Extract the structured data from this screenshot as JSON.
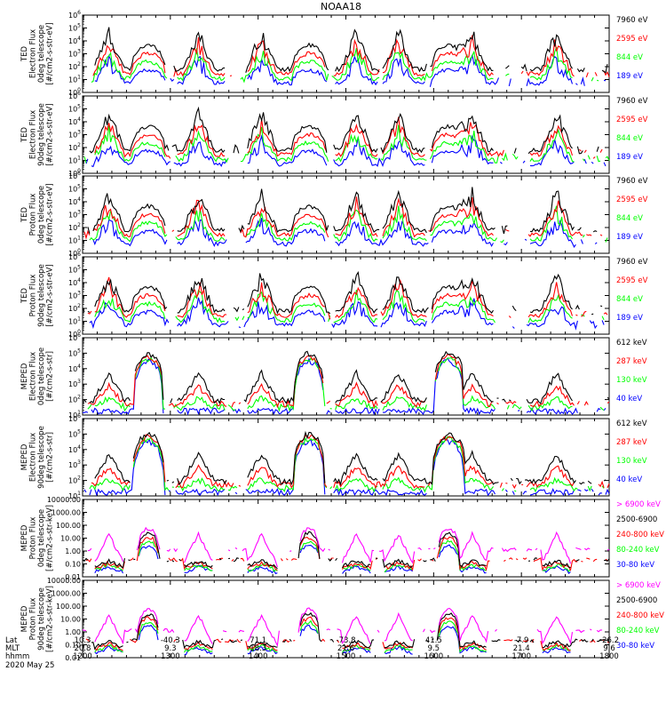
{
  "title": "NOAA18",
  "colors": {
    "blue": "#0000ff",
    "red": "#ff0000",
    "green": "#00ff00",
    "black": "#000000",
    "magenta": "#ff00ff"
  },
  "footer": {
    "row_labels": [
      "Lat",
      "MLT",
      "hhmm"
    ],
    "date": "2020 May 25",
    "lat": [
      "10.3",
      "-40.3",
      "71.1",
      "-73.8",
      "41.5",
      "-7.9",
      "-26.2"
    ],
    "mlt": [
      "20.8",
      "9.3",
      "18.3",
      "21.6",
      "9.5",
      "21.4",
      "9.6"
    ],
    "hhmm": [
      "1200",
      "1300",
      "1400",
      "1500",
      "1600",
      "1700",
      "1800"
    ]
  },
  "chart_data": [
    {
      "type": "line",
      "ylabel": [
        "TED",
        "Electron Flux",
        "0deg telescope",
        "[#/cm2-s-str-eV]"
      ],
      "yscale": "log",
      "ylim": [
        1,
        1000000
      ],
      "yticks": [
        {
          "label": "10",
          "sup": "0"
        },
        {
          "label": "10",
          "sup": "1"
        },
        {
          "label": "10",
          "sup": "2"
        },
        {
          "label": "10",
          "sup": "3"
        },
        {
          "label": "10",
          "sup": "4"
        },
        {
          "label": "10",
          "sup": "5"
        },
        {
          "label": "10",
          "sup": "6"
        }
      ],
      "series": [
        {
          "name": "7960 eV",
          "color": "black"
        },
        {
          "name": "2595 eV",
          "color": "red"
        },
        {
          "name": "844 eV",
          "color": "green"
        },
        {
          "name": "189 eV",
          "color": "blue"
        }
      ]
    },
    {
      "type": "line",
      "ylabel": [
        "TED",
        "Electron Flux",
        "90deg telescope",
        "[#/cm2-s-str-eV]"
      ],
      "yscale": "log",
      "ylim": [
        1,
        1000000
      ],
      "yticks": [
        {
          "label": "10",
          "sup": "0"
        },
        {
          "label": "10",
          "sup": "1"
        },
        {
          "label": "10",
          "sup": "2"
        },
        {
          "label": "10",
          "sup": "3"
        },
        {
          "label": "10",
          "sup": "4"
        },
        {
          "label": "10",
          "sup": "5"
        },
        {
          "label": "10",
          "sup": "6"
        }
      ],
      "series": [
        {
          "name": "7960 eV",
          "color": "black"
        },
        {
          "name": "2595 eV",
          "color": "red"
        },
        {
          "name": "844 eV",
          "color": "green"
        },
        {
          "name": "189 eV",
          "color": "blue"
        }
      ]
    },
    {
      "type": "line",
      "ylabel": [
        "TED",
        "Proton Flux",
        "0deg telescope",
        "[#/cm2-s-str-eV]"
      ],
      "yscale": "log",
      "ylim": [
        1,
        1000000
      ],
      "yticks": [
        {
          "label": "10",
          "sup": "0"
        },
        {
          "label": "10",
          "sup": "1"
        },
        {
          "label": "10",
          "sup": "2"
        },
        {
          "label": "10",
          "sup": "3"
        },
        {
          "label": "10",
          "sup": "4"
        },
        {
          "label": "10",
          "sup": "5"
        },
        {
          "label": "10",
          "sup": "6"
        }
      ],
      "series": [
        {
          "name": "7960 eV",
          "color": "black"
        },
        {
          "name": "2595 eV",
          "color": "red"
        },
        {
          "name": "844 eV",
          "color": "green"
        },
        {
          "name": "189 eV",
          "color": "blue"
        }
      ]
    },
    {
      "type": "line",
      "ylabel": [
        "TED",
        "Proton Flux",
        "90deg telescope",
        "[#/cm2-s-str-eV]"
      ],
      "yscale": "log",
      "ylim": [
        1,
        1000000
      ],
      "yticks": [
        {
          "label": "10",
          "sup": "0"
        },
        {
          "label": "10",
          "sup": "1"
        },
        {
          "label": "10",
          "sup": "2"
        },
        {
          "label": "10",
          "sup": "3"
        },
        {
          "label": "10",
          "sup": "4"
        },
        {
          "label": "10",
          "sup": "5"
        },
        {
          "label": "10",
          "sup": "6"
        }
      ],
      "series": [
        {
          "name": "7960 eV",
          "color": "black"
        },
        {
          "name": "2595 eV",
          "color": "red"
        },
        {
          "name": "844 eV",
          "color": "green"
        },
        {
          "name": "189 eV",
          "color": "blue"
        }
      ]
    },
    {
      "type": "line",
      "ylabel": [
        "MEPED",
        "Electron Flux",
        "0deg telescope",
        "[#/cm2-s-str]"
      ],
      "yscale": "log",
      "ylim": [
        10,
        1000000
      ],
      "yticks": [
        {
          "label": "10",
          "sup": "1"
        },
        {
          "label": "10",
          "sup": "2"
        },
        {
          "label": "10",
          "sup": "3"
        },
        {
          "label": "10",
          "sup": "4"
        },
        {
          "label": "10",
          "sup": "5"
        },
        {
          "label": "10",
          "sup": "6"
        }
      ],
      "series": [
        {
          "name": "612 keV",
          "color": "black"
        },
        {
          "name": "287 keV",
          "color": "red"
        },
        {
          "name": "130 keV",
          "color": "green"
        },
        {
          "name": "40 keV",
          "color": "blue"
        }
      ]
    },
    {
      "type": "line",
      "ylabel": [
        "MEPED",
        "Electron Flux",
        "90deg telescope",
        "[#/cm2-s-str]"
      ],
      "yscale": "log",
      "ylim": [
        10,
        1000000
      ],
      "yticks": [
        {
          "label": "10",
          "sup": "1"
        },
        {
          "label": "10",
          "sup": "2"
        },
        {
          "label": "10",
          "sup": "3"
        },
        {
          "label": "10",
          "sup": "4"
        },
        {
          "label": "10",
          "sup": "5"
        },
        {
          "label": "10",
          "sup": "6"
        }
      ],
      "series": [
        {
          "name": "612 keV",
          "color": "black"
        },
        {
          "name": "287 keV",
          "color": "red"
        },
        {
          "name": "130 keV",
          "color": "green"
        },
        {
          "name": "40 keV",
          "color": "blue"
        }
      ]
    },
    {
      "type": "line",
      "ylabel": [
        "MEPED",
        "Proton Flux",
        "0deg telescope",
        "[#/cm2-s-str-keV]"
      ],
      "yscale": "log",
      "ylim": [
        0.01,
        10000
      ],
      "yticks": [
        {
          "label": "0.01"
        },
        {
          "label": "0.10"
        },
        {
          "label": "1.00"
        },
        {
          "label": "10.00"
        },
        {
          "label": "100.00"
        },
        {
          "label": "1000.00"
        },
        {
          "label": "10000.00"
        }
      ],
      "series": [
        {
          "name": "> 6900 keV",
          "color": "magenta"
        },
        {
          "name": "2500-6900",
          "color": "black"
        },
        {
          "name": "240-800 keV",
          "color": "red"
        },
        {
          "name": "80-240 keV",
          "color": "green"
        },
        {
          "name": "30-80 keV",
          "color": "blue"
        }
      ]
    },
    {
      "type": "line",
      "ylabel": [
        "MEPED",
        "Proton Flux",
        "90deg telescope",
        "[#/cm2-s-str-keV]"
      ],
      "yscale": "log",
      "ylim": [
        0.01,
        10000
      ],
      "yticks": [
        {
          "label": "0.01"
        },
        {
          "label": "0.10"
        },
        {
          "label": "1.00"
        },
        {
          "label": "10.00"
        },
        {
          "label": "100.00"
        },
        {
          "label": "1000.00"
        },
        {
          "label": "10000.00"
        }
      ],
      "series": [
        {
          "name": "> 6900 keV",
          "color": "magenta"
        },
        {
          "name": "2500-6900",
          "color": "black"
        },
        {
          "name": "240-800 keV",
          "color": "red"
        },
        {
          "name": "80-240 keV",
          "color": "green"
        },
        {
          "name": "30-80 keV",
          "color": "blue"
        }
      ]
    }
  ]
}
